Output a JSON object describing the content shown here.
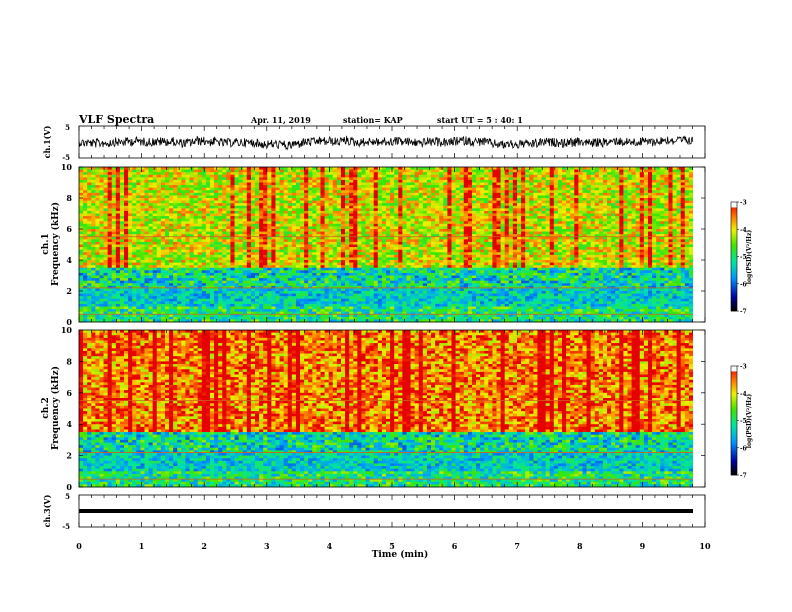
{
  "header": {
    "title": "VLF Spectra",
    "date": "Apr. 11, 2019",
    "station": "station= KAP",
    "start": "start  UT =   5 : 40: 1"
  },
  "chart_data": [
    {
      "type": "line",
      "name": "waveform-ch1",
      "ylabel": "ch.1(V)",
      "ylim": [
        -5,
        5
      ],
      "yticks": [
        "5",
        "-5"
      ],
      "xlim": [
        0,
        10
      ]
    },
    {
      "type": "heatmap",
      "name": "spectrogram-ch1",
      "ylabel_top": "ch.1",
      "ylabel": "Frequency  (kHz)",
      "ylim": [
        0,
        10
      ],
      "yticks": [
        "0",
        "2",
        "4",
        "6",
        "8",
        "10"
      ],
      "xlim": [
        0,
        10
      ],
      "colorbar": {
        "label": "log(PSD)(V²/Hz)",
        "range": [
          -7,
          -3
        ],
        "ticks": [
          "-3",
          "-4",
          "-5",
          "-6",
          "-7"
        ]
      }
    },
    {
      "type": "heatmap",
      "name": "spectrogram-ch2",
      "ylabel_top": "ch.2",
      "ylabel": "Frequency  (kHz)",
      "ylim": [
        0,
        10
      ],
      "yticks": [
        "0",
        "2",
        "4",
        "6",
        "8",
        "10"
      ],
      "xlim": [
        0,
        10
      ],
      "colorbar": {
        "label": "log(PSD)(V²/Hz)",
        "range": [
          -7,
          -3
        ],
        "ticks": [
          "-3",
          "-4",
          "-5",
          "-6",
          "-7"
        ]
      }
    },
    {
      "type": "line",
      "name": "waveform-ch3",
      "ylabel": "ch.3(V)",
      "ylim": [
        -5,
        5
      ],
      "yticks": [
        "5",
        "-5"
      ],
      "xlim": [
        0,
        10
      ],
      "xlabel": "Time  (min)",
      "xticks": [
        "0",
        "1",
        "2",
        "3",
        "4",
        "5",
        "6",
        "7",
        "8",
        "9",
        "10"
      ]
    }
  ]
}
